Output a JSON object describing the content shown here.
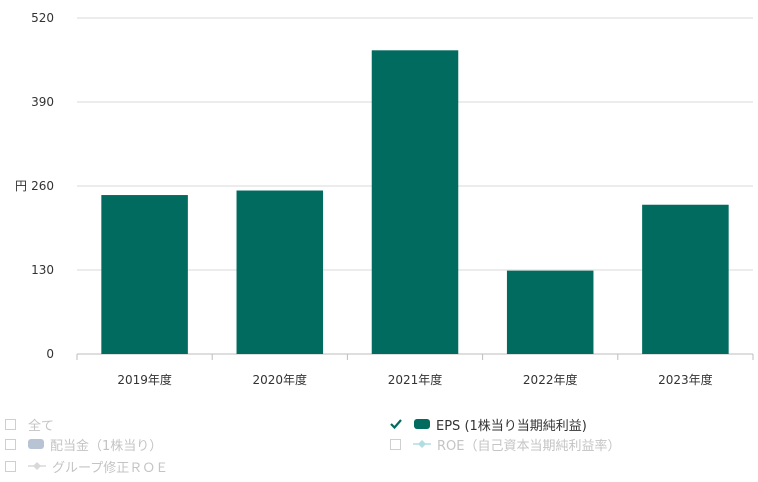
{
  "chart_data": {
    "type": "bar",
    "categories": [
      "2019年度",
      "2020年度",
      "2021年度",
      "2022年度",
      "2023年度"
    ],
    "series": [
      {
        "name": "EPS (1株当り当期純利益)",
        "values": [
          246,
          253,
          470,
          129,
          231
        ],
        "color": "#006B5E"
      }
    ],
    "ylabel": "円",
    "ylim": [
      0,
      520
    ],
    "yticks": [
      "520",
      "390",
      "260",
      "130",
      "0"
    ],
    "ytick_values": [
      520,
      390,
      260,
      130,
      0
    ],
    "grid": true
  },
  "legend": {
    "all_label": "全て",
    "eps_label": "EPS (1株当り当期純利益)",
    "dividend_label": "配当金（1株当り）",
    "roe_label": "ROE（自己資本当期純利益率）",
    "group_roe_label": "グループ修正ＲＯＥ",
    "eps_color": "#006B5E",
    "dividend_color": "#b8c4d4",
    "roe_color": "#b0dde0",
    "group_roe_color": "#d8d8d8"
  }
}
